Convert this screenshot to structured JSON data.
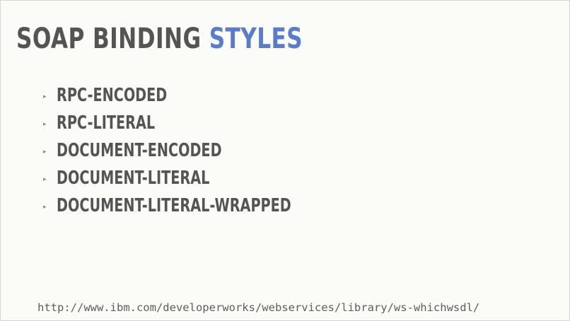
{
  "slide": {
    "title_main": "SOAP BINDING ",
    "title_accent": "STYLES",
    "bullets": [
      "RPC-ENCODED",
      "RPC-LITERAL",
      "DOCUMENT-ENCODED",
      "DOCUMENT-LITERAL",
      "DOCUMENT-LITERAL-WRAPPED"
    ],
    "bullet_marker": "▸",
    "footer_url": "http://www.ibm.com/developerworks/webservices/library/ws-whichwsdl/"
  },
  "colors": {
    "background": "#fbfbf7",
    "text": "#545454",
    "accent": "#5b7cc8"
  }
}
